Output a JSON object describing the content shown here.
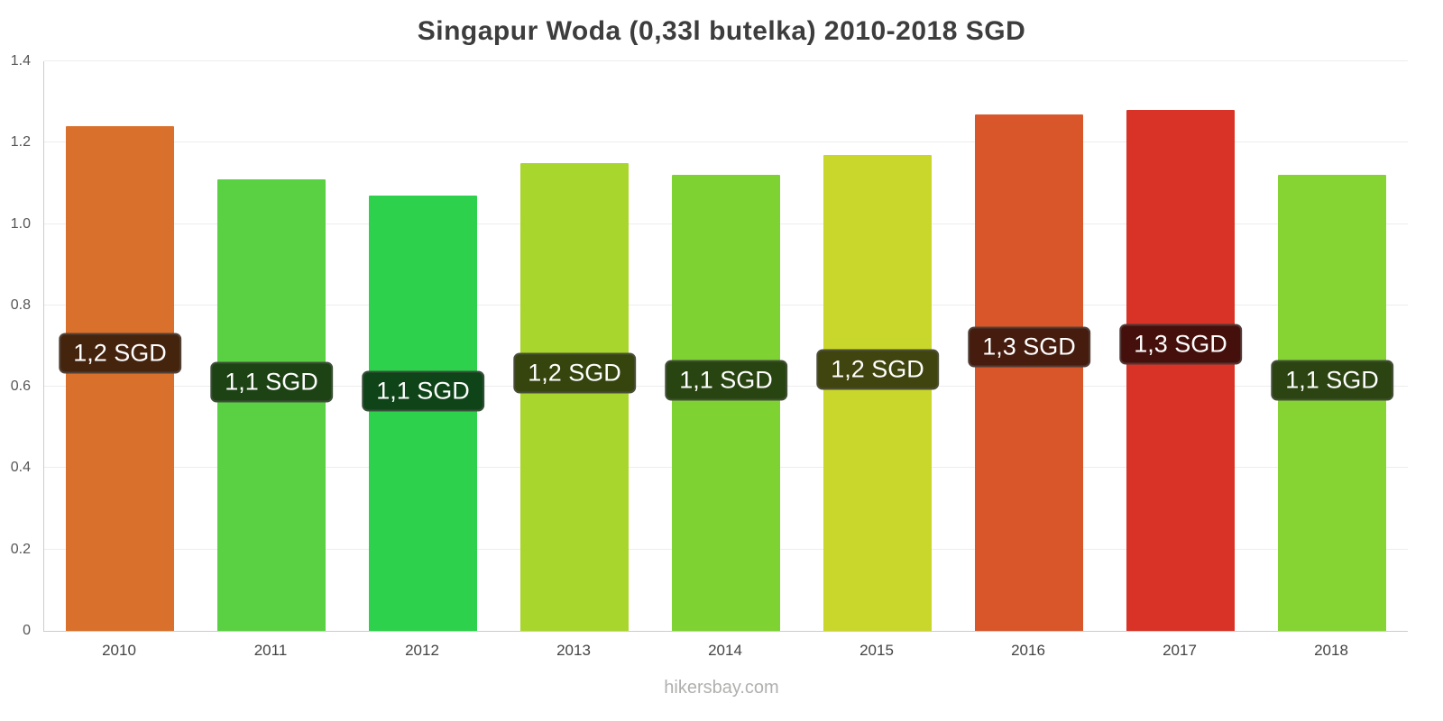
{
  "title": "Singapur Woda (0,33l butelka) 2010-2018 SGD",
  "footer": "hikersbay.com",
  "chart_data": {
    "type": "bar",
    "title": "Singapur Woda (0,33l butelka) 2010-2018 SGD",
    "categories": [
      "2010",
      "2011",
      "2012",
      "2013",
      "2014",
      "2015",
      "2016",
      "2017",
      "2018"
    ],
    "values": [
      1.24,
      1.11,
      1.07,
      1.15,
      1.12,
      1.17,
      1.27,
      1.28,
      1.12
    ],
    "bar_labels": [
      "1,2 SGD",
      "1,1 SGD",
      "1,1 SGD",
      "1,2 SGD",
      "1,1 SGD",
      "1,2 SGD",
      "1,3 SGD",
      "1,3 SGD",
      "1,1 SGD"
    ],
    "bar_colors": [
      "#d9702c",
      "#5ad142",
      "#2ed14b",
      "#a9d62c",
      "#7ed333",
      "#c9d62b",
      "#d8562a",
      "#d93226",
      "#85d434"
    ],
    "xlabel": "",
    "ylabel": "",
    "ylim": [
      0,
      1.4
    ],
    "yticks": [
      0,
      0.2,
      0.4,
      0.6,
      0.8,
      1.0,
      1.2,
      1.4
    ],
    "ytick_labels": [
      "0",
      "0.2",
      "0.4",
      "0.6",
      "0.8",
      "1.0",
      "1.2",
      "1.4"
    ],
    "grid": true,
    "legend": false,
    "label_height_fraction": 0.55
  }
}
